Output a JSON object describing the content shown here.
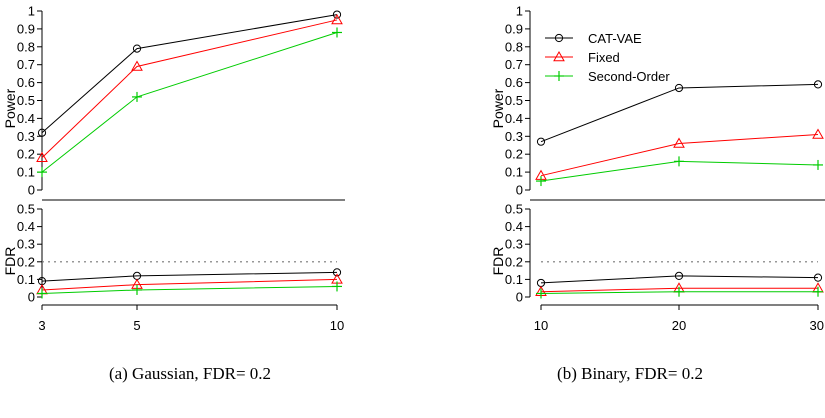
{
  "chart_data": [
    {
      "type": "line",
      "caption": "(a) Gaussian, FDR= 0.2",
      "x": [
        3,
        5,
        10
      ],
      "xticks": [
        "3",
        "5",
        "10"
      ],
      "power": {
        "ylabel": "Power",
        "ylim": [
          0,
          1
        ],
        "yticks": [
          "0",
          "0.1",
          "0.2",
          "0.3",
          "0.4",
          "0.5",
          "0.6",
          "0.7",
          "0.8",
          "0.9",
          "1"
        ],
        "series": [
          {
            "name": "CAT-VAE",
            "color": "#000000",
            "marker": "circle",
            "values": [
              0.32,
              0.79,
              0.98
            ]
          },
          {
            "name": "Fixed",
            "color": "#ff0000",
            "marker": "triangle",
            "values": [
              0.18,
              0.69,
              0.95
            ]
          },
          {
            "name": "Second-Order",
            "color": "#00cc00",
            "marker": "plus",
            "values": [
              0.1,
              0.52,
              0.88
            ]
          }
        ]
      },
      "fdr": {
        "ylabel": "FDR",
        "ylim": [
          0,
          0.5
        ],
        "yticks": [
          "0",
          "0.1",
          "0.2",
          "0.3",
          "0.4",
          "0.5"
        ],
        "target": 0.2,
        "series": [
          {
            "name": "CAT-VAE",
            "color": "#000000",
            "marker": "circle",
            "values": [
              0.09,
              0.12,
              0.14
            ]
          },
          {
            "name": "Fixed",
            "color": "#ff0000",
            "marker": "triangle",
            "values": [
              0.04,
              0.07,
              0.1
            ]
          },
          {
            "name": "Second-Order",
            "color": "#00cc00",
            "marker": "plus",
            "values": [
              0.02,
              0.04,
              0.06
            ]
          }
        ]
      }
    },
    {
      "type": "line",
      "caption": "(b) Binary, FDR= 0.2",
      "legend_position": "top-left",
      "x": [
        10,
        20,
        30
      ],
      "xticks": [
        "10",
        "20",
        "30"
      ],
      "power": {
        "ylabel": "Power",
        "ylim": [
          0,
          1
        ],
        "yticks": [
          "0",
          "0.1",
          "0.2",
          "0.3",
          "0.4",
          "0.5",
          "0.6",
          "0.7",
          "0.8",
          "0.9",
          "1"
        ],
        "series": [
          {
            "name": "CAT-VAE",
            "color": "#000000",
            "marker": "circle",
            "values": [
              0.27,
              0.57,
              0.59
            ]
          },
          {
            "name": "Fixed",
            "color": "#ff0000",
            "marker": "triangle",
            "values": [
              0.08,
              0.26,
              0.31
            ]
          },
          {
            "name": "Second-Order",
            "color": "#00cc00",
            "marker": "plus",
            "values": [
              0.05,
              0.16,
              0.14
            ]
          }
        ]
      },
      "fdr": {
        "ylabel": "FDR",
        "ylim": [
          0,
          0.5
        ],
        "yticks": [
          "0",
          "0.1",
          "0.2",
          "0.3",
          "0.4",
          "0.5"
        ],
        "target": 0.2,
        "series": [
          {
            "name": "CAT-VAE",
            "color": "#000000",
            "marker": "circle",
            "values": [
              0.08,
              0.12,
              0.11
            ]
          },
          {
            "name": "Fixed",
            "color": "#ff0000",
            "marker": "triangle",
            "values": [
              0.03,
              0.05,
              0.05
            ]
          },
          {
            "name": "Second-Order",
            "color": "#00cc00",
            "marker": "plus",
            "values": [
              0.02,
              0.03,
              0.03
            ]
          }
        ]
      }
    }
  ]
}
